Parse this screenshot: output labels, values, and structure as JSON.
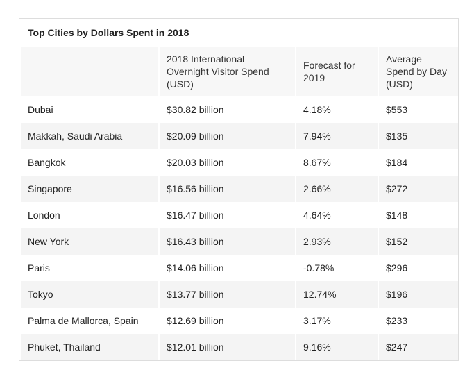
{
  "title": "Top Cities by Dollars Spent in 2018",
  "headers": [
    "",
    "2018 International Overnight Visitor Spend (USD)",
    "Forecast for 2019",
    "Average Spend by Day (USD)"
  ],
  "rows": [
    [
      "Dubai",
      "$30.82 billion",
      "4.18%",
      "$553"
    ],
    [
      "Makkah, Saudi Arabia",
      "$20.09 billion",
      "7.94%",
      "$135"
    ],
    [
      "Bangkok",
      "$20.03 billion",
      "8.67%",
      "$184"
    ],
    [
      "Singapore",
      "$16.56 billion",
      "2.66%",
      "$272"
    ],
    [
      "London",
      "$16.47 billion",
      "4.64%",
      "$148"
    ],
    [
      "New York",
      "$16.43 billion",
      "2.93%",
      "$152"
    ],
    [
      "Paris",
      "$14.06 billion",
      "-0.78%",
      "$296"
    ],
    [
      "Tokyo",
      "$13.77 billion",
      "12.74%",
      "$196"
    ],
    [
      "Palma de Mallorca, Spain",
      "$12.69 billion",
      "3.17%",
      "$233"
    ],
    [
      "Phuket, Thailand",
      "$12.01 billion",
      "9.16%",
      "$247"
    ]
  ]
}
